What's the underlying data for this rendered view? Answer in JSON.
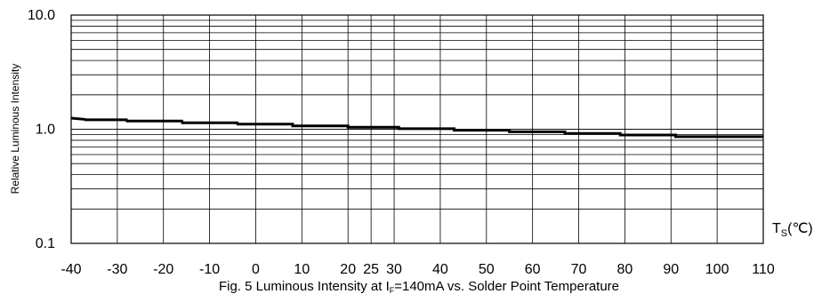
{
  "chart_data": {
    "type": "line",
    "title": "",
    "ylabel": "Relative Luminous Intensity",
    "xlabel": {
      "main": "T",
      "sub": "S",
      "unit": "(℃)"
    },
    "x_ticks": [
      "-40",
      "-30",
      "-20",
      "-10",
      "0",
      "10",
      "20",
      "25",
      "30",
      "40",
      "50",
      "60",
      "70",
      "80",
      "90",
      "100",
      "110"
    ],
    "y_ticks": [
      "10.0",
      "1.0",
      "0.1"
    ],
    "y_scale": "log",
    "ylim": [
      0.1,
      10
    ],
    "xlim": [
      -40,
      110
    ],
    "grid": true,
    "series": [
      {
        "x": [
          -40,
          -37,
          -36.9,
          -28,
          -27.9,
          -16,
          -15.9,
          -4,
          -3.9,
          8,
          8,
          20,
          20,
          31,
          31,
          43,
          43,
          55,
          55,
          67,
          67,
          79,
          79,
          91,
          91,
          110
        ],
        "y": [
          1.25,
          1.22,
          1.21,
          1.21,
          1.18,
          1.18,
          1.14,
          1.14,
          1.11,
          1.11,
          1.07,
          1.07,
          1.04,
          1.04,
          1.01,
          1.01,
          0.98,
          0.98,
          0.95,
          0.95,
          0.92,
          0.92,
          0.89,
          0.89,
          0.86,
          0.86
        ]
      }
    ]
  },
  "caption": {
    "prefix": "Fig. 5 Luminous Intensity at I",
    "sub": "F",
    "suffix": "=140mA vs. Solder Point Temperature"
  }
}
